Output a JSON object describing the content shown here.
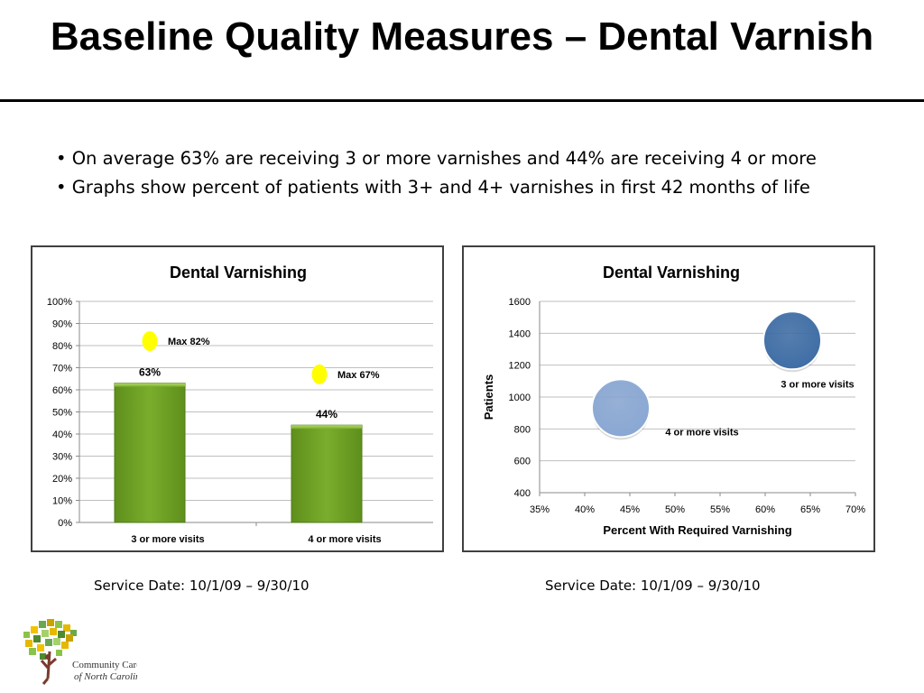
{
  "slide": {
    "title": "Baseline Quality Measures – Dental Varnish",
    "bullets": [
      "On average 63% are receiving 3 or more varnishes and 44% are receiving 4 or more",
      "Graphs show percent of patients with 3+ and 4+ varnishes in first 42 months of life"
    ],
    "service_date_left": "Service Date: 10/1/09 – 9/30/10",
    "service_date_right": "Service Date: 10/1/09 – 9/30/10",
    "logo": {
      "line1": "Community Care",
      "line2": "of North Carolina"
    }
  },
  "chart_data": [
    {
      "type": "bar",
      "title": "Dental Varnishing",
      "categories": [
        "3 or more visits",
        "4 or more visits"
      ],
      "values": [
        63,
        44
      ],
      "data_labels": [
        "63%",
        "44%"
      ],
      "ylim": [
        0,
        100
      ],
      "yticks": [
        "0%",
        "10%",
        "20%",
        "30%",
        "40%",
        "50%",
        "60%",
        "70%",
        "80%",
        "90%",
        "100%"
      ],
      "grid": true,
      "bar_color": "#7aad2c",
      "markers": [
        {
          "category": "3 or more visits",
          "value": 82,
          "label": "Max 82%",
          "color": "#ffff00"
        },
        {
          "category": "4 or more visits",
          "value": 67,
          "label": "Max 67%",
          "color": "#ffff00"
        }
      ]
    },
    {
      "type": "scatter",
      "title": "Dental Varnishing",
      "xlabel": "Percent With Required Varnishing",
      "ylabel": "Patients",
      "xlim": [
        35,
        70
      ],
      "ylim": [
        400,
        1600
      ],
      "xticks": [
        "35%",
        "40%",
        "45%",
        "50%",
        "55%",
        "60%",
        "65%",
        "70%"
      ],
      "yticks": [
        "400",
        "600",
        "800",
        "1000",
        "1200",
        "1400",
        "1600"
      ],
      "grid": true,
      "points": [
        {
          "label": "3 or more visits",
          "x": 63,
          "y": 1355,
          "color": "#3f6ea6"
        },
        {
          "label": "4 or more visits",
          "x": 44,
          "y": 930,
          "color": "#8aa8d4"
        }
      ]
    }
  ]
}
